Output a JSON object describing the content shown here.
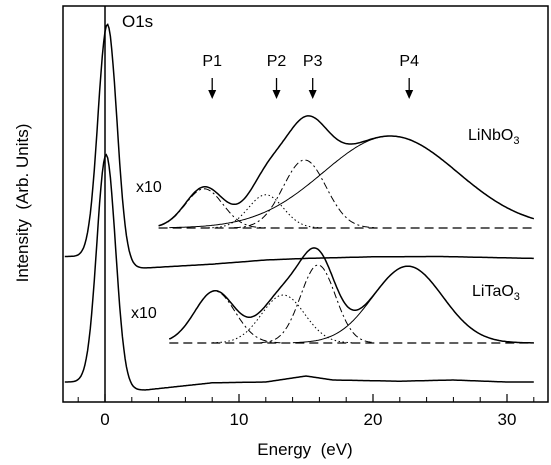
{
  "chart_data": {
    "type": "line",
    "xlabel": "Energy  (eV)",
    "ylabel": "Intensity  (Arb. Units)",
    "xlim": [
      -3,
      32
    ],
    "x_ticks": [
      0,
      10,
      20,
      30
    ],
    "y_ticks_shown": false,
    "grid": false,
    "annotations": {
      "peak": "O1s",
      "markers": [
        {
          "label": "P1",
          "x": 8.0
        },
        {
          "label": "P2",
          "x": 12.8
        },
        {
          "label": "P3",
          "x": 15.5
        },
        {
          "label": "P4",
          "x": 22.7
        }
      ],
      "magnification": "x10",
      "sample_labels": [
        {
          "base": "LiNbO",
          "sub": "3"
        },
        {
          "base": "LiTaO",
          "sub": "3"
        }
      ]
    },
    "panels": [
      {
        "sample": "LiNbO3",
        "survey_spectrum": {
          "baseline": 0.36,
          "o1s_peak": {
            "x": 0.2,
            "height": 7.5,
            "width": 0.7
          },
          "tail": [
            [
              3,
              0.0
            ],
            [
              8,
              0.12
            ],
            [
              12,
              0.25
            ],
            [
              15,
              0.3
            ],
            [
              20,
              0.35
            ],
            [
              25,
              0.36
            ],
            [
              32,
              0.3
            ]
          ]
        },
        "magnified": {
          "x_start": 4.0,
          "x_end": 32.0,
          "components": [
            {
              "name": "P1",
              "center": 7.4,
              "height": 0.98,
              "width": 1.4,
              "style": "dash-dot"
            },
            {
              "name": "P2",
              "center": 12.0,
              "height": 0.83,
              "width": 1.3,
              "style": "dotted"
            },
            {
              "name": "P3",
              "center": 14.9,
              "height": 1.7,
              "width": 1.6,
              "style": "dash-dot"
            },
            {
              "name": "P4",
              "center": 21.3,
              "height": 2.3,
              "width": 5.0,
              "style": "thin-solid"
            }
          ]
        }
      },
      {
        "sample": "LiTaO3",
        "survey_spectrum": {
          "baseline": 0.2,
          "o1s_peak": {
            "x": 0.1,
            "height": 5.8,
            "width": 0.7
          },
          "tail": [
            [
              3,
              0.0
            ],
            [
              8,
              0.18
            ],
            [
              12,
              0.2
            ],
            [
              15,
              0.35
            ],
            [
              17,
              0.25
            ],
            [
              22,
              0.22
            ],
            [
              26,
              0.25
            ],
            [
              30,
              0.2
            ]
          ]
        },
        "magnified": {
          "x_start": 4.8,
          "x_end": 32.0,
          "components": [
            {
              "name": "P1",
              "center": 8.2,
              "height": 1.3,
              "width": 1.5,
              "style": "dash-dot"
            },
            {
              "name": "P2",
              "center": 13.3,
              "height": 1.2,
              "width": 1.6,
              "style": "dotted"
            },
            {
              "name": "P3",
              "center": 15.9,
              "height": 1.95,
              "width": 1.3,
              "style": "dash-dot"
            },
            {
              "name": "P4",
              "center": 22.6,
              "height": 1.92,
              "width": 2.6,
              "style": "thin-solid"
            }
          ]
        }
      }
    ]
  }
}
